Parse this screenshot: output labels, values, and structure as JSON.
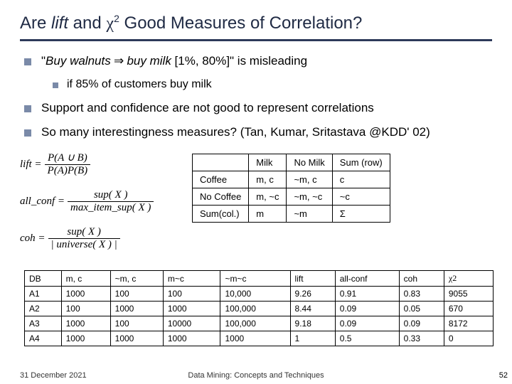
{
  "title": {
    "pre": "Are ",
    "lift": "lift",
    "mid1": " and ",
    "chi": "χ",
    "sup": "2",
    "mid2": "  Good Measures of Correlation?"
  },
  "bullets": {
    "b1a_pre": "\"",
    "b1a_ital1": "Buy walnuts",
    "b1a_arrow": " ⇒ ",
    "b1a_ital2": "buy milk",
    "b1a_post": " [1%, 80%]\"  is misleading",
    "b2": "if 85% of customers buy milk",
    "b1b": "Support and confidence are not good to represent correlations",
    "b1c": "So many interestingness measures?  (Tan, Kumar, Sritastava @KDD' 02)"
  },
  "formulas": {
    "lift_lhs": "lift = ",
    "lift_num": "P(A ∪ B)",
    "lift_den": "P(A)P(B)",
    "allconf_lhs": "all_conf = ",
    "allconf_num": "sup( X )",
    "allconf_den": "max_item_sup( X )",
    "coh_lhs": "coh = ",
    "coh_num": "sup( X )",
    "coh_den": "| universe( X ) |"
  },
  "ctable": {
    "headers": [
      "",
      "Milk",
      "No Milk",
      "Sum (row)"
    ],
    "rows": [
      [
        "Coffee",
        "m, c",
        "~m, c",
        "c"
      ],
      [
        "No Coffee",
        "m, ~c",
        "~m, ~c",
        "~c"
      ],
      [
        "Sum(col.)",
        "m",
        "~m",
        "Σ"
      ]
    ]
  },
  "btable": {
    "headers": [
      "DB",
      "m, c",
      "~m, c",
      "m~c",
      "~m~c",
      "lift",
      "all-conf",
      "coh",
      "χ2"
    ],
    "rows": [
      [
        "A1",
        "1000",
        "100",
        "100",
        "10,000",
        "9.26",
        "0.91",
        "0.83",
        "9055"
      ],
      [
        "A2",
        "100",
        "1000",
        "1000",
        "100,000",
        "8.44",
        "0.09",
        "0.05",
        "670"
      ],
      [
        "A3",
        "1000",
        "100",
        "10000",
        "100,000",
        "9.18",
        "0.09",
        "0.09",
        "8172"
      ],
      [
        "A4",
        "1000",
        "1000",
        "1000",
        "1000",
        "1",
        "0.5",
        "0.33",
        "0"
      ]
    ]
  },
  "footer": {
    "date": "31 December 2021",
    "center": "Data Mining: Concepts and Techniques",
    "page": "52"
  }
}
